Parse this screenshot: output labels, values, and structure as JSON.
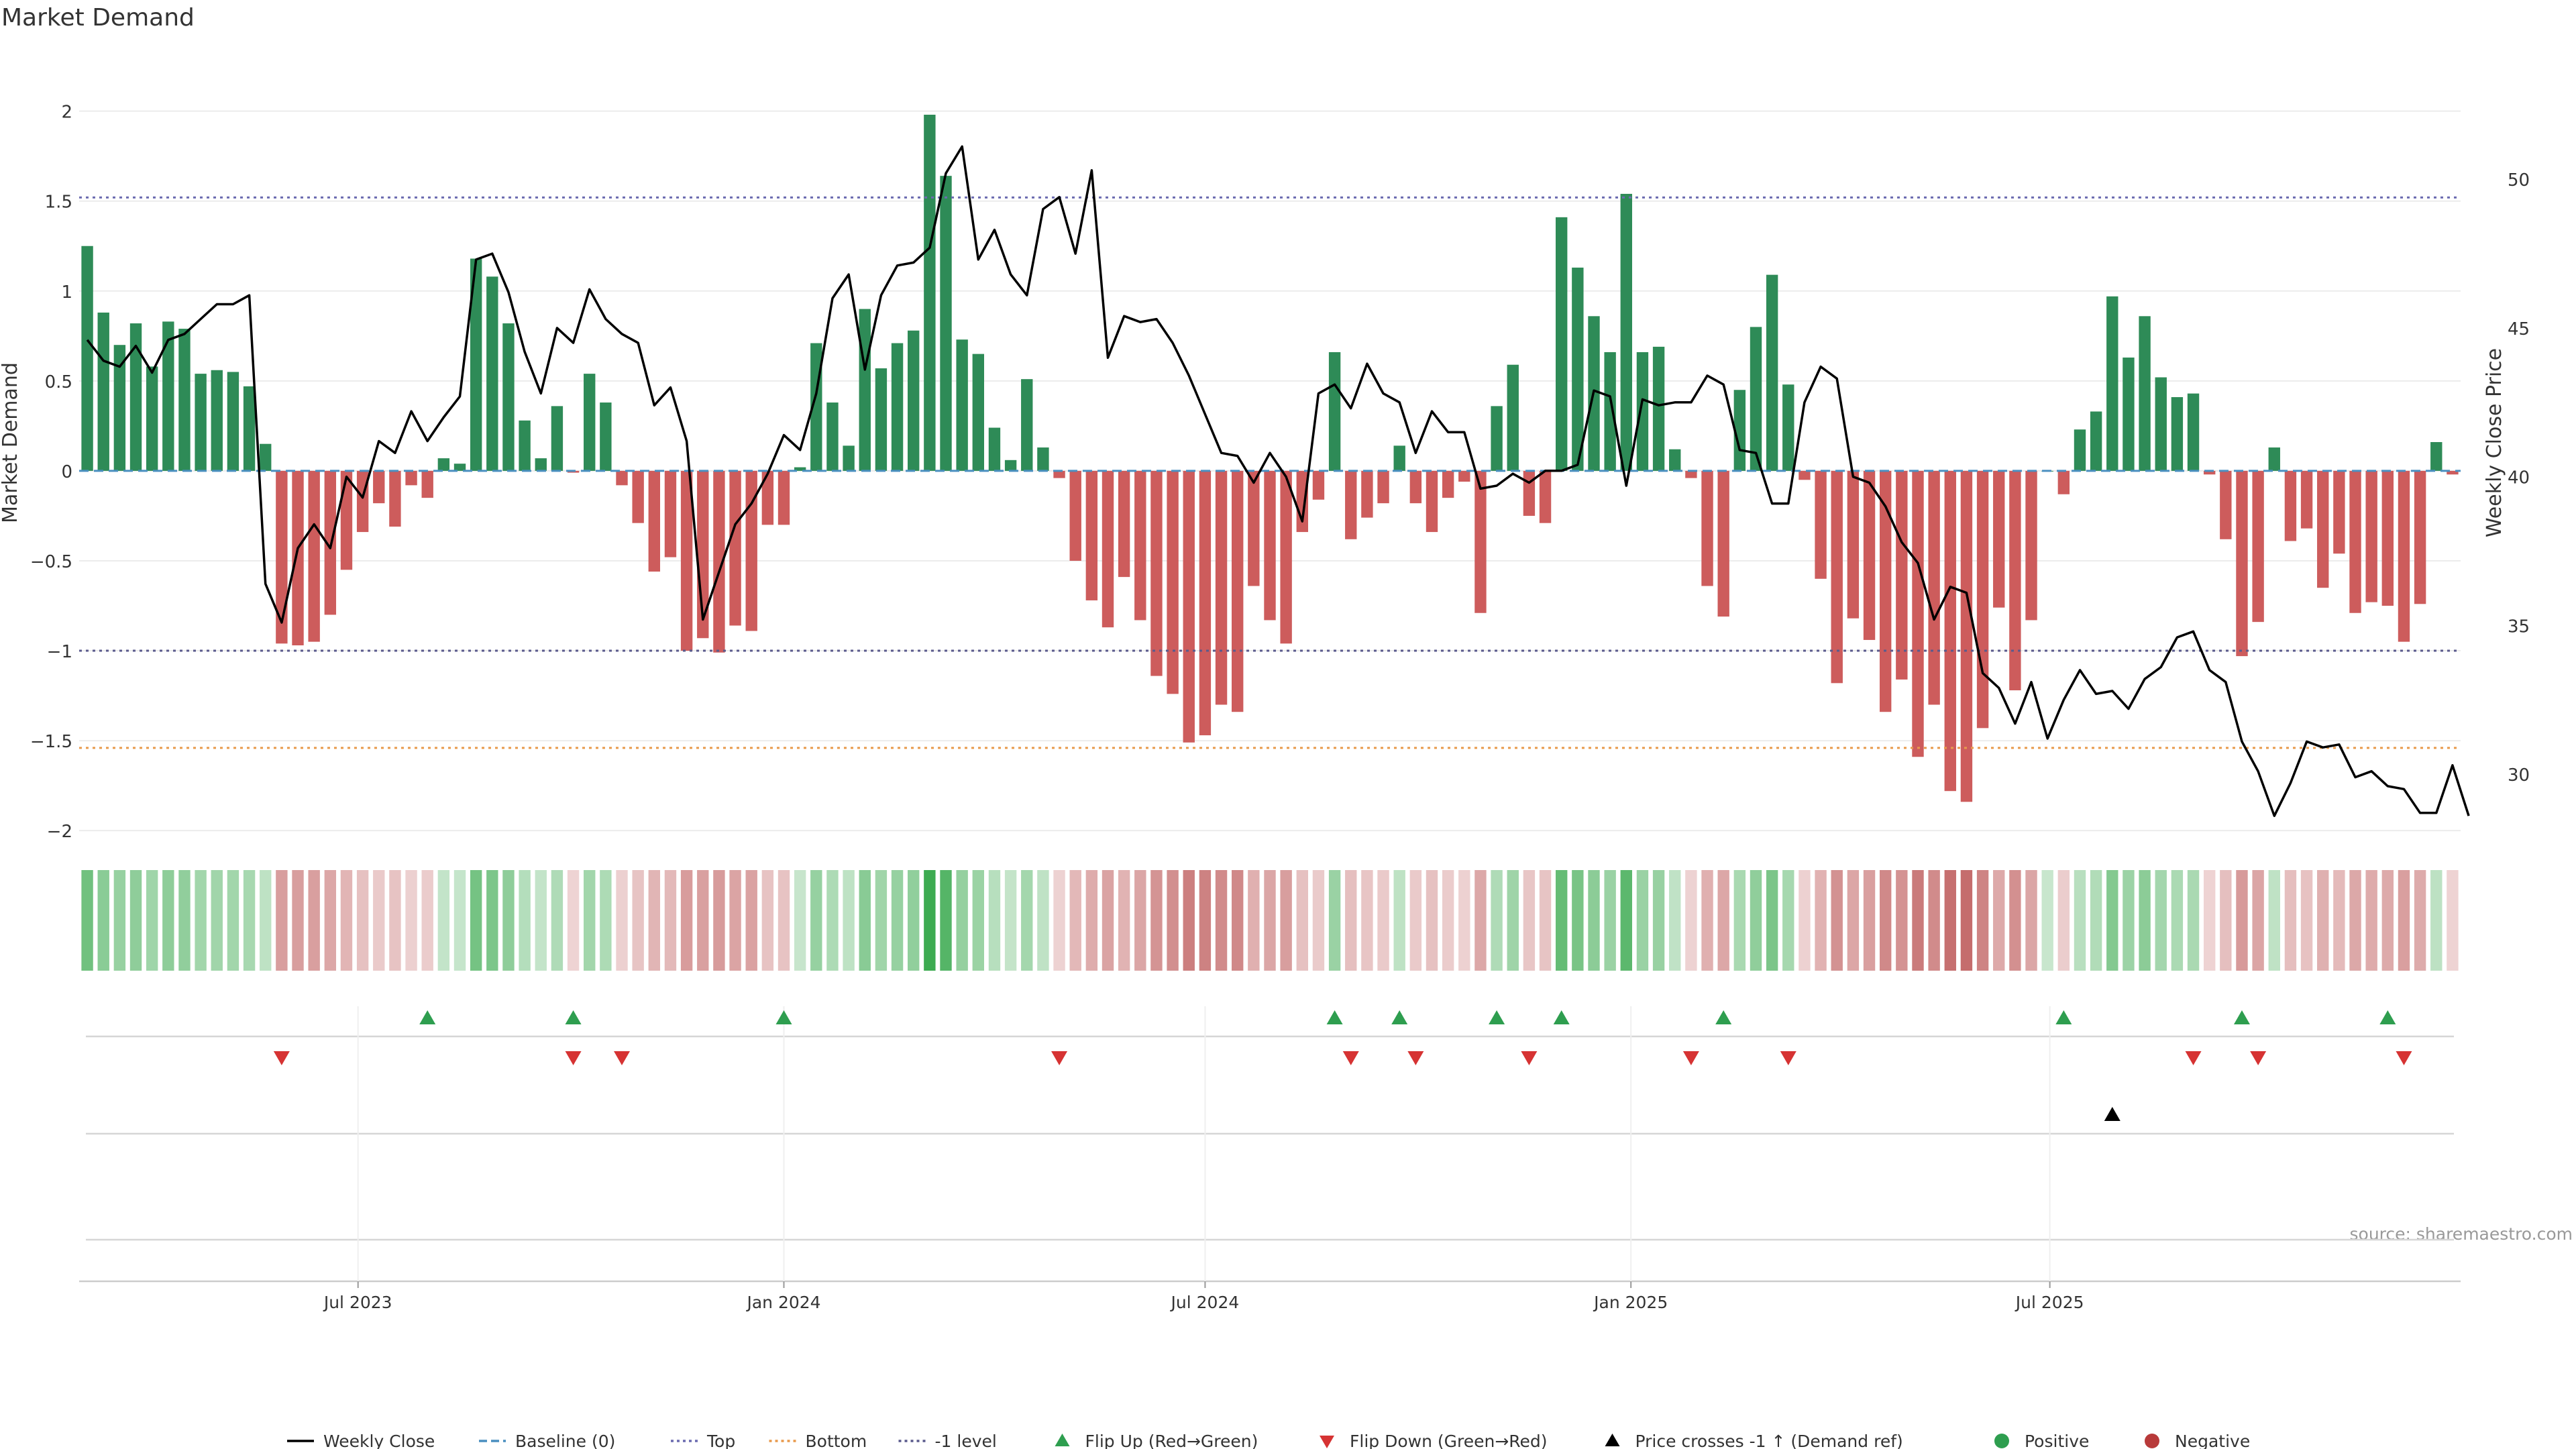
{
  "page": {
    "title": "Market Demand",
    "source": "source: sharemaestro.com"
  },
  "chart_data": {
    "type": "bar",
    "title": "Market Demand",
    "ylabel": "Market Demand",
    "y2label": "Weekly Close Price",
    "ylim": [
      -2.1,
      2.2
    ],
    "y_ticks": [
      2,
      1.5,
      1,
      0.5,
      0,
      -0.5,
      -1,
      -1.5,
      -2
    ],
    "y_tick_labels": [
      "2",
      "1.5",
      "1",
      "0.5",
      "0",
      "−0.5",
      "−1",
      "−1.5",
      "−2"
    ],
    "y2lim": [
      27.5,
      53.5
    ],
    "y2_ticks": [
      50,
      45,
      40,
      35,
      30
    ],
    "y2_tick_labels": [
      "50",
      "45",
      "40",
      "35",
      "30"
    ],
    "x_start_date": "2023-03-06",
    "x_tick_labels": [
      {
        "date": "2023-07-01",
        "label": "Jul 2023"
      },
      {
        "date": "2024-01-01",
        "label": "Jan 2024"
      },
      {
        "date": "2024-07-01",
        "label": "Jul 2024"
      },
      {
        "date": "2025-01-01",
        "label": "Jan 2025"
      },
      {
        "date": "2025-07-01",
        "label": "Jul 2025"
      }
    ],
    "reference_lines": [
      {
        "name": "Top",
        "value": 1.52,
        "color": "#6b6bb0",
        "style": "dotted"
      },
      {
        "name": "-1 level",
        "value": -1.0,
        "color": "#5a5a8c",
        "style": "dotted"
      },
      {
        "name": "Bottom",
        "value": -1.54,
        "color": "#e89a4c",
        "style": "dotted"
      },
      {
        "name": "Baseline (0)",
        "value": 0,
        "color": "#4a8fc0",
        "style": "dashed"
      }
    ],
    "series": [
      {
        "name": "Market Demand",
        "kind": "bar",
        "values": [
          1.25,
          0.88,
          0.7,
          0.82,
          0.58,
          0.83,
          0.79,
          0.54,
          0.56,
          0.55,
          0.47,
          0.15,
          -0.96,
          -0.97,
          -0.95,
          -0.8,
          -0.55,
          -0.34,
          -0.18,
          -0.31,
          -0.08,
          -0.15,
          0.07,
          0.04,
          1.18,
          1.08,
          0.82,
          0.28,
          0.07,
          0.36,
          -0.01,
          0.54,
          0.38,
          -0.08,
          -0.29,
          -0.56,
          -0.48,
          -1.0,
          -0.93,
          -1.01,
          -0.86,
          -0.89,
          -0.3,
          -0.3,
          0.02,
          0.71,
          0.38,
          0.14,
          0.9,
          0.57,
          0.71,
          0.78,
          1.98,
          1.64,
          0.73,
          0.65,
          0.24,
          0.06,
          0.51,
          0.13,
          -0.04,
          -0.5,
          -0.72,
          -0.87,
          -0.59,
          -0.83,
          -1.14,
          -1.24,
          -1.51,
          -1.47,
          -1.3,
          -1.34,
          -0.64,
          -0.83,
          -0.96,
          -0.34,
          -0.16,
          0.66,
          -0.38,
          -0.26,
          -0.18,
          0.14,
          -0.18,
          -0.34,
          -0.15,
          -0.06,
          -0.79,
          0.36,
          0.59,
          -0.25,
          -0.29,
          1.41,
          1.13,
          0.86,
          0.66,
          1.54,
          0.66,
          0.69,
          0.12,
          -0.04,
          -0.64,
          -0.81,
          0.45,
          0.8,
          1.09,
          0.48,
          -0.05,
          -0.6,
          -1.18,
          -0.82,
          -0.94,
          -1.34,
          -1.16,
          -1.59,
          -1.3,
          -1.78,
          -1.84,
          -1.43,
          -0.76,
          -1.22,
          -0.83,
          0.0,
          -0.13,
          0.23,
          0.33,
          0.97,
          0.63,
          0.86,
          0.52,
          0.41,
          0.43,
          -0.02,
          -0.38,
          -1.03,
          -0.84,
          0.13,
          -0.39,
          -0.32,
          -0.65,
          -0.46,
          -0.79,
          -0.73,
          -0.75,
          -0.95,
          -0.74,
          0.16,
          -0.02
        ]
      },
      {
        "name": "Weekly Close",
        "kind": "line",
        "axis": "right",
        "values": [
          44.6,
          43.9,
          43.7,
          44.4,
          43.5,
          44.6,
          44.8,
          45.3,
          45.8,
          45.8,
          46.1,
          36.4,
          35.1,
          37.6,
          38.4,
          37.6,
          40.0,
          39.3,
          41.2,
          40.8,
          42.2,
          41.2,
          42.0,
          42.7,
          47.3,
          47.5,
          46.2,
          44.2,
          42.8,
          45.0,
          44.5,
          46.3,
          45.3,
          44.8,
          44.5,
          42.4,
          43.0,
          41.2,
          35.2,
          36.8,
          38.4,
          39.1,
          40.1,
          41.4,
          40.9,
          42.8,
          46.0,
          46.8,
          43.6,
          46.1,
          47.1,
          47.2,
          47.7,
          50.2,
          51.1,
          47.3,
          48.3,
          46.8,
          46.1,
          49.0,
          49.4,
          47.5,
          50.3,
          44.0,
          45.4,
          45.2,
          45.3,
          44.5,
          43.4,
          42.1,
          40.8,
          40.7,
          39.8,
          40.8,
          40.0,
          38.5,
          42.8,
          43.1,
          42.3,
          43.8,
          42.8,
          42.5,
          40.8,
          42.2,
          41.5,
          41.5,
          39.6,
          39.7,
          40.1,
          39.8,
          40.2,
          40.2,
          40.4,
          42.9,
          42.7,
          39.7,
          42.6,
          42.4,
          42.5,
          42.5,
          43.4,
          43.1,
          40.9,
          40.8,
          39.1,
          39.1,
          42.5,
          43.7,
          43.3,
          40.0,
          39.8,
          39.0,
          37.8,
          37.1,
          35.2,
          36.3,
          36.1,
          33.4,
          32.9,
          31.7,
          33.1,
          31.2,
          32.5,
          33.5,
          32.7,
          32.8,
          32.2,
          33.2,
          33.6,
          34.6,
          34.8,
          33.5,
          33.1,
          31.1,
          30.1,
          28.6,
          29.7,
          31.1,
          30.9,
          31.0,
          29.9,
          30.1,
          29.6,
          29.5,
          28.7,
          28.7,
          30.3,
          28.6
        ]
      }
    ],
    "heatmap_strip": "Market Demand shaded by sign and magnitude",
    "flip_up_weeks": [
      21,
      30,
      43,
      77,
      81,
      87,
      91,
      101,
      122,
      133,
      142
    ],
    "flip_down_weeks": [
      12,
      30,
      33,
      60,
      78,
      82,
      89,
      99,
      105,
      130,
      134,
      143
    ],
    "price_cross_up_weeks": [
      125
    ],
    "legend_placement": "bottom-center"
  },
  "legend": [
    {
      "label": "Weekly Close",
      "symbol": "line",
      "color": "#000000"
    },
    {
      "label": "Baseline (0)",
      "symbol": "dash",
      "color": "#4a8fc0"
    },
    {
      "label": "Top",
      "symbol": "dot",
      "color": "#6b6bb0"
    },
    {
      "label": "Bottom",
      "symbol": "dot",
      "color": "#e89a4c"
    },
    {
      "label": "-1 level",
      "symbol": "dot",
      "color": "#5a5a8c"
    },
    {
      "label": "Flip Up (Red→Green)",
      "symbol": "tri-up",
      "color": "#2e9e4f"
    },
    {
      "label": "Flip Down (Green→Red)",
      "symbol": "tri-down",
      "color": "#d63333"
    },
    {
      "label": "Price crosses -1 ↑ (Demand ref)",
      "symbol": "tri-up",
      "color": "#000000"
    },
    {
      "label": "Positive",
      "symbol": "circle",
      "color": "#2e9e4f"
    },
    {
      "label": "Negative",
      "symbol": "circle",
      "color": "#b83a3a"
    }
  ],
  "colors": {
    "positive": "#2e8b57",
    "negative": "#cd5c5c",
    "grid": "#ececec",
    "axis": "#cccccc"
  }
}
